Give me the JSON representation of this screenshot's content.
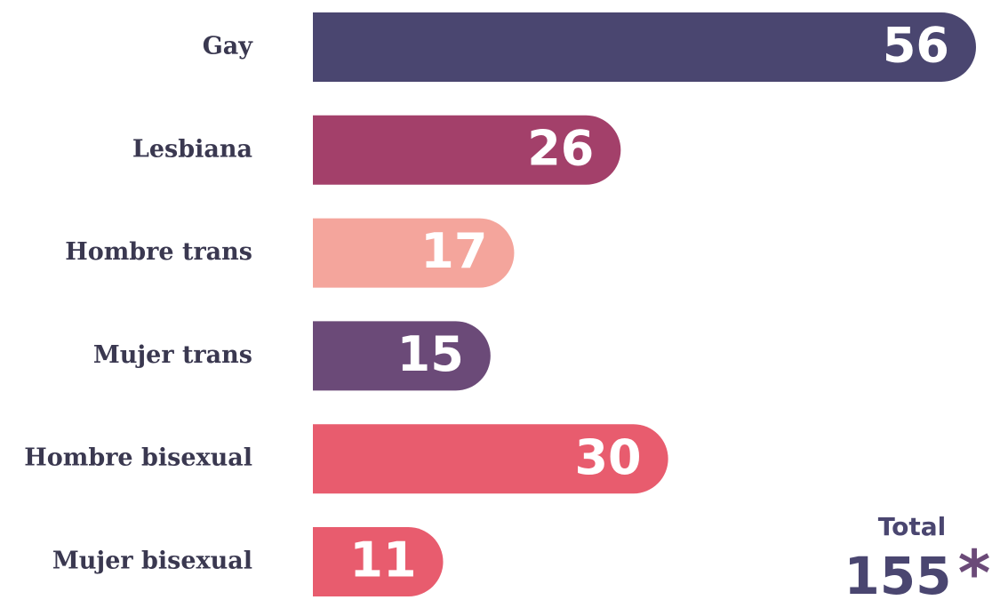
{
  "chart_data": {
    "type": "bar",
    "orientation": "horizontal",
    "categories": [
      "Gay",
      "Lesbiana",
      "Hombre trans",
      "Mujer trans",
      "Hombre bisexual",
      "Mujer bisexual"
    ],
    "values": [
      56,
      26,
      17,
      15,
      30,
      11
    ],
    "colors": [
      "#4a4670",
      "#a3406a",
      "#f4a59c",
      "#6b4a78",
      "#e85c6e",
      "#e85c6e"
    ],
    "total_label": "Total",
    "total": 155,
    "total_marker": "*"
  }
}
